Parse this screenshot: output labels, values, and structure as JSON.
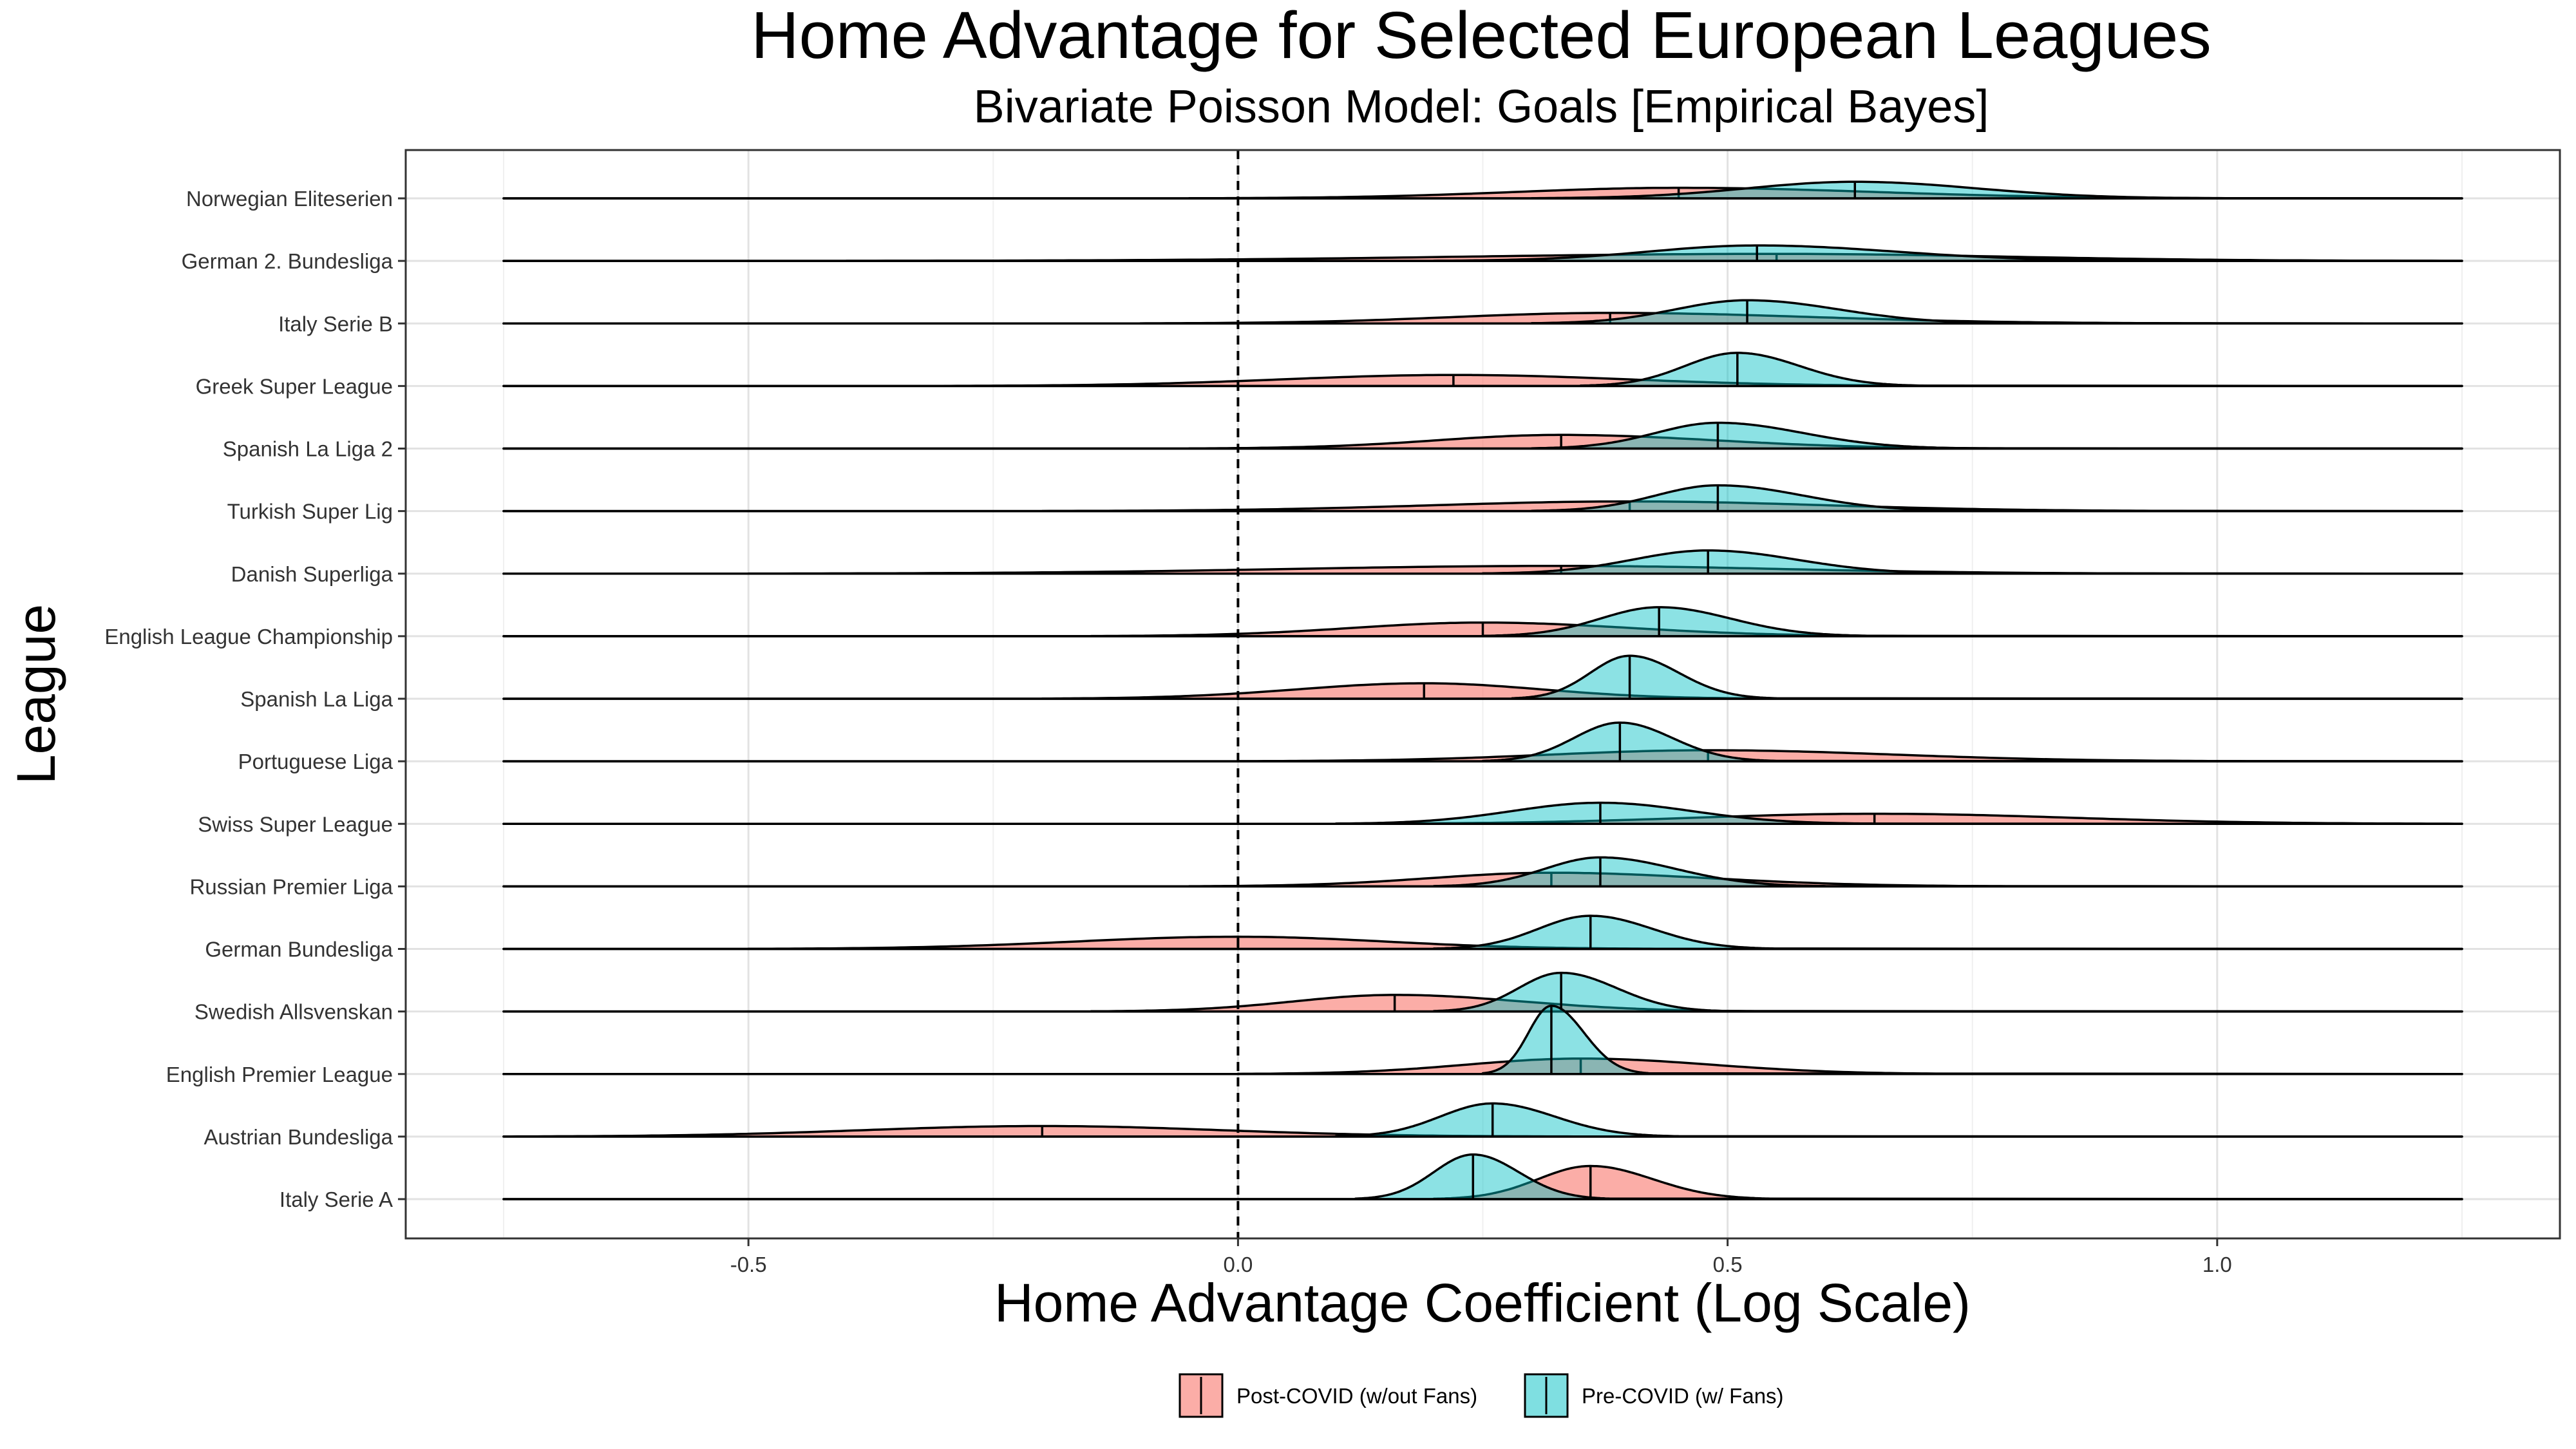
{
  "chart_data": {
    "type": "area",
    "title": "Home Advantage for Selected European Leagues",
    "subtitle": "Bivariate Poisson Model: Goals [Empirical Bayes]",
    "xlabel": "Home Advantage Coefficient (Log Scale)",
    "ylabel": "League",
    "xlim": [
      -0.85,
      1.35
    ],
    "x_ticks": [
      -0.5,
      0.0,
      0.5,
      1.0
    ],
    "x_tick_labels": [
      "-0.5",
      "0.0",
      "0.5",
      "1.0"
    ],
    "reference_line_x": 0.0,
    "grid": true,
    "legend_position": "bottom",
    "colors": {
      "post": "#F8766D",
      "pre": "#00BFC4"
    },
    "series": [
      {
        "name": "Post-COVID (w/out Fans)",
        "key": "post"
      },
      {
        "name": "Pre-COVID (w/ Fans)",
        "key": "pre"
      }
    ],
    "leagues": [
      {
        "name": "Norwegian Eliteserien",
        "post": {
          "median": 0.45,
          "min": -0.05,
          "max": 1.05
        },
        "pre": {
          "median": 0.63,
          "min": 0.3,
          "max": 1.0
        }
      },
      {
        "name": "German 2. Bundesliga",
        "post": {
          "median": 0.55,
          "min": -0.4,
          "max": 1.25
        },
        "pre": {
          "median": 0.53,
          "min": 0.2,
          "max": 0.95
        }
      },
      {
        "name": "Italy Serie B",
        "post": {
          "median": 0.38,
          "min": -0.1,
          "max": 1.0
        },
        "pre": {
          "median": 0.52,
          "min": 0.3,
          "max": 0.8
        }
      },
      {
        "name": "Greek Super League",
        "post": {
          "median": 0.22,
          "min": -0.3,
          "max": 0.75
        },
        "pre": {
          "median": 0.51,
          "min": 0.35,
          "max": 0.7
        }
      },
      {
        "name": "Spanish La Liga 2",
        "post": {
          "median": 0.33,
          "min": -0.05,
          "max": 0.8
        },
        "pre": {
          "median": 0.49,
          "min": 0.3,
          "max": 0.75
        }
      },
      {
        "name": "Turkish Super Lig",
        "post": {
          "median": 0.4,
          "min": -0.2,
          "max": 1.0
        },
        "pre": {
          "median": 0.49,
          "min": 0.3,
          "max": 0.75
        }
      },
      {
        "name": "Danish Superliga",
        "post": {
          "median": 0.33,
          "min": -0.5,
          "max": 1.0
        },
        "pre": {
          "median": 0.48,
          "min": 0.25,
          "max": 0.75
        }
      },
      {
        "name": "English League Championship",
        "post": {
          "median": 0.25,
          "min": -0.15,
          "max": 0.7
        },
        "pre": {
          "median": 0.43,
          "min": 0.25,
          "max": 0.65
        }
      },
      {
        "name": "Spanish La Liga",
        "post": {
          "median": 0.19,
          "min": -0.2,
          "max": 0.55
        },
        "pre": {
          "median": 0.4,
          "min": 0.28,
          "max": 0.55
        }
      },
      {
        "name": "Portuguese Liga",
        "post": {
          "median": 0.48,
          "min": 0.0,
          "max": 1.05
        },
        "pre": {
          "median": 0.39,
          "min": 0.25,
          "max": 0.55
        }
      },
      {
        "name": "Swiss Super League",
        "post": {
          "median": 0.65,
          "min": 0.1,
          "max": 1.25
        },
        "pre": {
          "median": 0.37,
          "min": 0.1,
          "max": 0.65
        }
      },
      {
        "name": "Russian Premier Liga",
        "post": {
          "median": 0.32,
          "min": -0.05,
          "max": 0.8
        },
        "pre": {
          "median": 0.37,
          "min": 0.2,
          "max": 0.6
        }
      },
      {
        "name": "German Bundesliga",
        "post": {
          "median": 0.0,
          "min": -0.5,
          "max": 0.45
        },
        "pre": {
          "median": 0.36,
          "min": 0.2,
          "max": 0.55
        }
      },
      {
        "name": "Swedish Allsvenskan",
        "post": {
          "median": 0.16,
          "min": -0.15,
          "max": 0.55
        },
        "pre": {
          "median": 0.33,
          "min": 0.2,
          "max": 0.5
        }
      },
      {
        "name": "English Premier League",
        "post": {
          "median": 0.35,
          "min": 0.0,
          "max": 0.75
        },
        "pre": {
          "median": 0.32,
          "min": 0.25,
          "max": 0.42
        }
      },
      {
        "name": "Austrian Bundesliga",
        "post": {
          "median": -0.2,
          "min": -0.75,
          "max": 0.35
        },
        "pre": {
          "median": 0.26,
          "min": 0.1,
          "max": 0.45
        }
      },
      {
        "name": "Italy Serie A",
        "post": {
          "median": 0.36,
          "min": 0.2,
          "max": 0.55
        },
        "pre": {
          "median": 0.24,
          "min": 0.12,
          "max": 0.38
        }
      }
    ]
  }
}
